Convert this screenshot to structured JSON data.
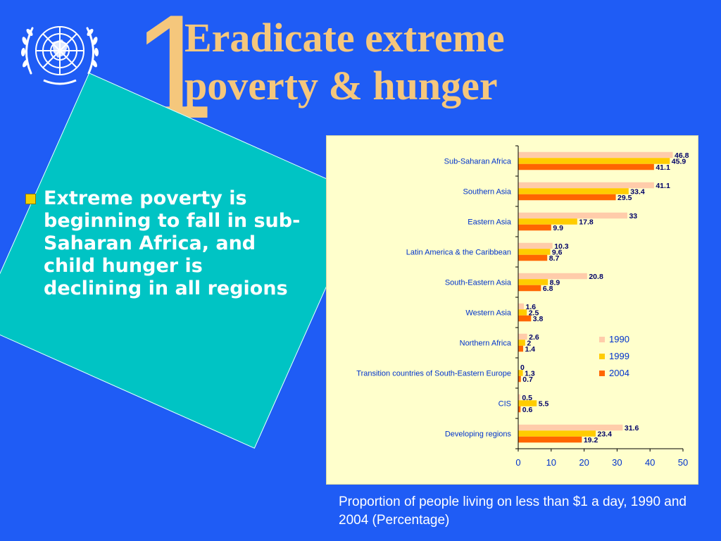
{
  "slide": {
    "number": "1",
    "title_line1": "Eradicate extreme",
    "title_line2": "poverty & hunger",
    "bullet": "Extreme poverty is beginning to fall in sub-Saharan Africa, and child hunger is declining in all regions",
    "caption": "Proportion of people living on less than $1 a day, 1990 and 2004 (Percentage)",
    "logo": "un-emblem-icon"
  },
  "colors": {
    "background": "#1f5cf5",
    "title": "#f5c77c",
    "card": "#00c4c4",
    "chart_bg": "#ffffcc"
  },
  "chart_data": {
    "type": "bar",
    "orientation": "horizontal",
    "categories": [
      "Sub-Saharan Africa",
      "Southern Asia",
      "Eastern Asia",
      "Latin America & the Caribbean",
      "South-Eastern Asia",
      "Western Asia",
      "Northern Africa",
      "Transition countries of South-Eastern Europe",
      "CIS",
      "Developing regions"
    ],
    "series": [
      {
        "name": "1990",
        "color": "#ffccaa",
        "values": [
          46.8,
          41.1,
          33,
          10.3,
          20.8,
          1.6,
          2.6,
          0,
          0.5,
          31.6
        ]
      },
      {
        "name": "1999",
        "color": "#ffcc00",
        "values": [
          45.9,
          33.4,
          17.8,
          9.6,
          8.9,
          2.5,
          2,
          1.3,
          5.5,
          23.4
        ]
      },
      {
        "name": "2004",
        "color": "#ff6600",
        "values": [
          41.1,
          29.5,
          9.9,
          8.7,
          6.8,
          3.8,
          1.4,
          0.7,
          0.6,
          19.2
        ]
      }
    ],
    "xlim": [
      0,
      50
    ],
    "xticks": [
      0,
      10,
      20,
      30,
      40,
      50
    ],
    "legend_position": "right",
    "grid": false
  }
}
